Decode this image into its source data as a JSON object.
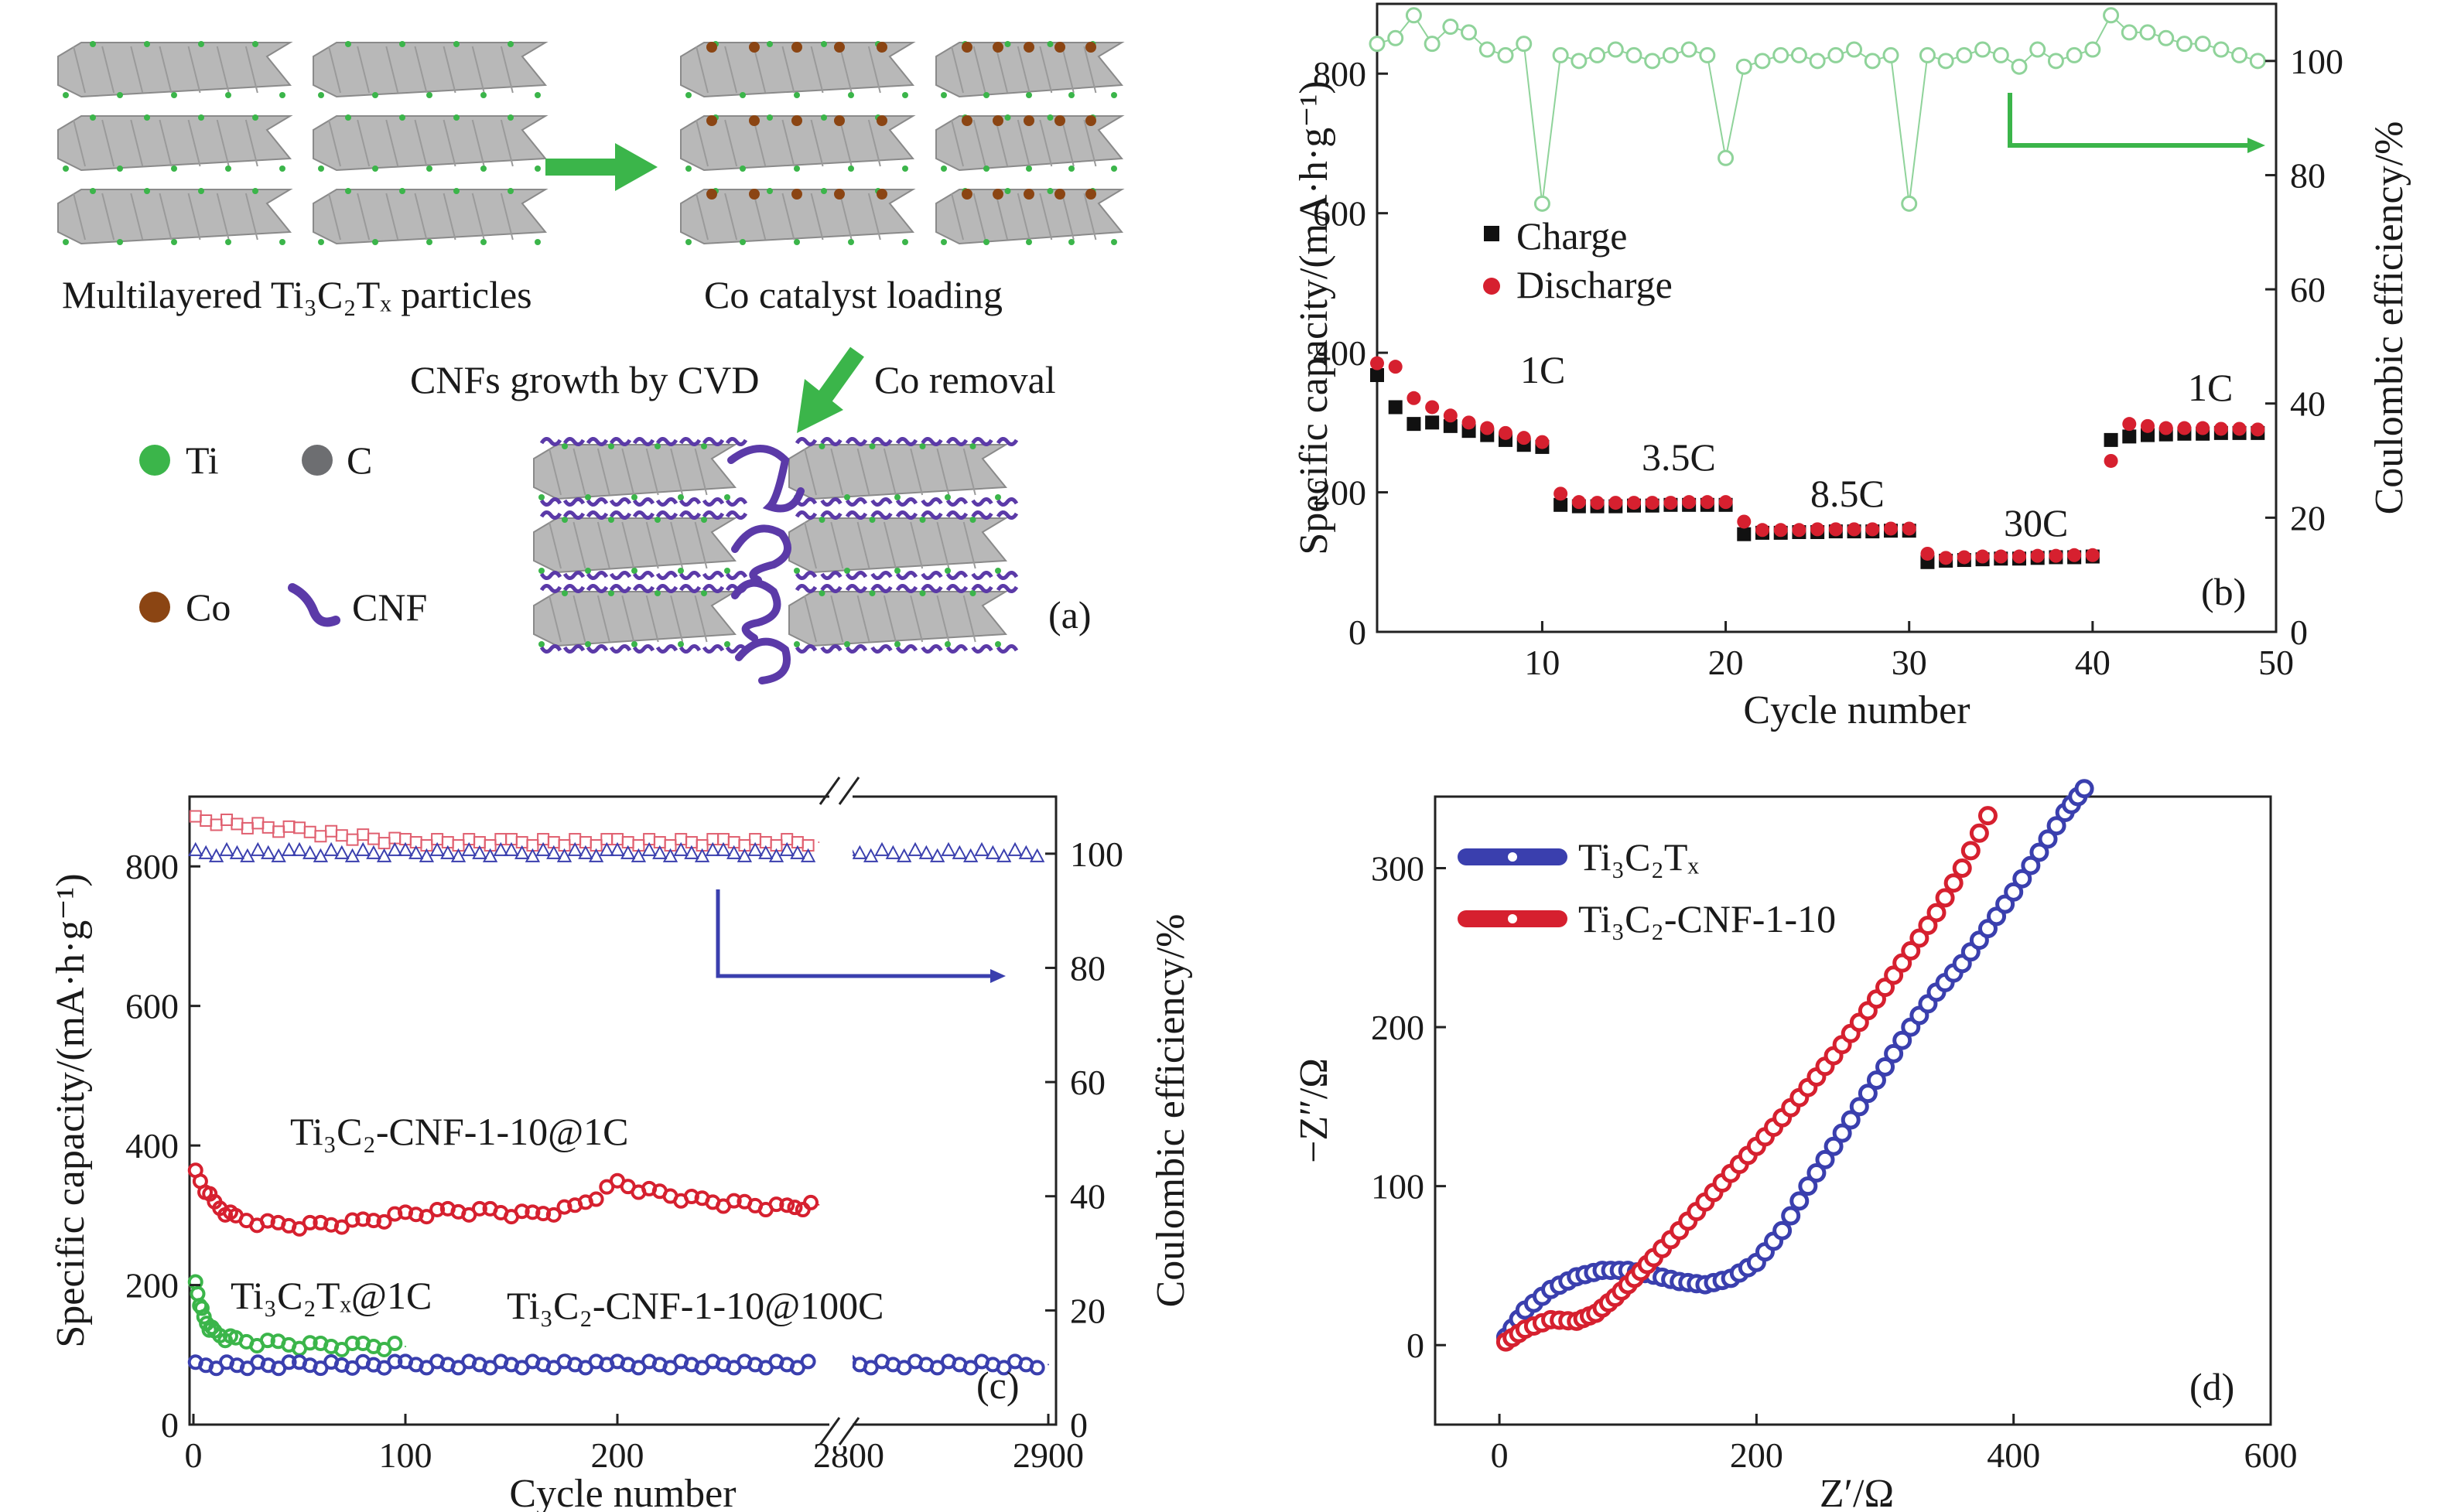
{
  "panel_a": {
    "caption_1": "Multilayered Ti₃C₂Tₓ particles",
    "caption_2": "Co catalyst loading",
    "step_1": "CNFs growth by CVD",
    "step_2": "Co removal",
    "legend": [
      "Ti",
      "C",
      "Co",
      "CNF"
    ],
    "colors": {
      "ti": "#3bb54a",
      "c": "#6d6e71",
      "co": "#8b4513",
      "cnf": "#5b3aa8",
      "arrow": "#3bb54a",
      "sheet": "#b8b8b8"
    },
    "label": "(a)"
  },
  "chart_data": [
    {
      "panel": "b",
      "type": "scatter",
      "label": "(b)",
      "xlabel": "Cycle number",
      "ylabel": "Specific capacity/(mA·h·g⁻¹)",
      "y2label": "Coulombic efficiency/%",
      "xlim": [
        1,
        50
      ],
      "ylim": [
        0,
        900
      ],
      "y2lim": [
        0,
        110
      ],
      "xticks": [
        10,
        20,
        30,
        40,
        50
      ],
      "yticks": [
        0,
        200,
        400,
        600,
        800
      ],
      "y2ticks": [
        0,
        20,
        40,
        60,
        80,
        100
      ],
      "legend": [
        "Charge",
        "Discharge"
      ],
      "annotations": [
        "1C",
        "3.5C",
        "8.5C",
        "30C",
        "1C"
      ],
      "series": [
        {
          "name": "Charge",
          "color": "#111111",
          "marker": "square",
          "x": [
            1,
            2,
            3,
            4,
            5,
            6,
            7,
            8,
            9,
            10,
            11,
            12,
            13,
            14,
            15,
            16,
            17,
            18,
            19,
            20,
            21,
            22,
            23,
            24,
            25,
            26,
            27,
            28,
            29,
            30,
            31,
            32,
            33,
            34,
            35,
            36,
            37,
            38,
            39,
            40,
            41,
            42,
            43,
            44,
            45,
            46,
            47,
            48,
            49
          ],
          "y": [
            368,
            322,
            298,
            300,
            295,
            288,
            282,
            275,
            268,
            265,
            182,
            180,
            180,
            180,
            181,
            181,
            182,
            182,
            182,
            182,
            140,
            142,
            142,
            143,
            143,
            144,
            144,
            144,
            145,
            145,
            100,
            102,
            103,
            104,
            105,
            105,
            106,
            107,
            107,
            108,
            275,
            280,
            282,
            283,
            284,
            284,
            285,
            285,
            285
          ]
        },
        {
          "name": "Discharge",
          "color": "#d6202f",
          "marker": "circle",
          "x": [
            1,
            2,
            3,
            4,
            5,
            6,
            7,
            8,
            9,
            10,
            11,
            12,
            13,
            14,
            15,
            16,
            17,
            18,
            19,
            20,
            21,
            22,
            23,
            24,
            25,
            26,
            27,
            28,
            29,
            30,
            31,
            32,
            33,
            34,
            35,
            36,
            37,
            38,
            39,
            40,
            41,
            42,
            43,
            44,
            45,
            46,
            47,
            48,
            49
          ],
          "y": [
            385,
            380,
            335,
            322,
            310,
            300,
            292,
            285,
            278,
            272,
            198,
            186,
            185,
            185,
            185,
            185,
            185,
            186,
            186,
            186,
            158,
            146,
            146,
            146,
            147,
            147,
            147,
            147,
            148,
            148,
            112,
            106,
            107,
            108,
            108,
            108,
            109,
            109,
            110,
            110,
            245,
            298,
            295,
            292,
            292,
            292,
            291,
            291,
            290
          ]
        },
        {
          "name": "",
          "color": "#8fd39a",
          "marker": "open-circle",
          "axis": "right",
          "x": [
            1,
            2,
            3,
            4,
            5,
            6,
            7,
            8,
            9,
            10,
            11,
            12,
            13,
            14,
            15,
            16,
            17,
            18,
            19,
            20,
            21,
            22,
            23,
            24,
            25,
            26,
            27,
            28,
            29,
            30,
            31,
            32,
            33,
            34,
            35,
            36,
            37,
            38,
            39,
            40,
            41,
            42,
            43,
            44,
            45,
            46,
            47,
            48,
            49
          ],
          "y": [
            103,
            104,
            108,
            103,
            106,
            105,
            102,
            101,
            103,
            75,
            101,
            100,
            101,
            102,
            101,
            100,
            101,
            102,
            101,
            83,
            99,
            100,
            101,
            101,
            100,
            101,
            102,
            100,
            101,
            75,
            101,
            100,
            101,
            102,
            101,
            99,
            102,
            100,
            101,
            102,
            108,
            105,
            105,
            104,
            103,
            103,
            102,
            101,
            100
          ]
        }
      ]
    },
    {
      "panel": "c",
      "type": "scatter",
      "label": "(c)",
      "xlabel": "Cycle number",
      "ylabel": "Specific capacity/(mA·h·g⁻¹)",
      "y2label": "Coulombic efficiency/%",
      "xticks": [
        0,
        100,
        200,
        2800,
        2900
      ],
      "yticks": [
        0,
        200,
        400,
        600,
        800
      ],
      "y2ticks": [
        0,
        20,
        40,
        60,
        80,
        100
      ],
      "ylim": [
        0,
        900
      ],
      "y2lim": [
        0,
        110
      ],
      "annotations": [
        "Ti₃C₂-CNF-1-10@1C",
        "Ti₃C₂Tₓ@1C",
        "Ti₃C₂-CNF-1-10@100C"
      ],
      "series": [
        {
          "name": "Ti₃C₂-CNF-1-10@1C",
          "color": "#d6202f",
          "x": [
            1,
            10,
            20,
            40,
            60,
            80,
            100,
            120,
            140,
            160,
            180,
            200,
            220,
            240,
            260,
            280,
            295
          ],
          "y": [
            360,
            315,
            295,
            285,
            285,
            290,
            300,
            305,
            305,
            300,
            310,
            345,
            330,
            320,
            315,
            310,
            315
          ]
        },
        {
          "name": "Ti₃C₂Tₓ@1C",
          "color": "#3bb54a",
          "x": [
            1,
            5,
            10,
            20,
            40,
            60,
            80,
            100
          ],
          "y": [
            200,
            150,
            130,
            120,
            115,
            112,
            112,
            112
          ]
        },
        {
          "name": "Ti₃C₂-CNF-1-10@100C",
          "color": "#3a3fae",
          "x": [
            1,
            50,
            100,
            200,
            295,
            2800,
            2900
          ],
          "y": [
            85,
            85,
            86,
            86,
            86,
            86,
            86
          ]
        },
        {
          "name": "",
          "color": "#e06070",
          "axis": "right",
          "x": [
            1,
            50,
            100,
            150,
            200,
            250,
            295
          ],
          "y": [
            106,
            104,
            102,
            102,
            102,
            102,
            102
          ]
        },
        {
          "name": "",
          "color": "#3a3fae",
          "axis": "right",
          "x": [
            1,
            50,
            100,
            150,
            200,
            250,
            295,
            2800,
            2900
          ],
          "y": [
            100,
            100,
            100,
            100,
            100,
            100,
            100,
            100,
            100
          ]
        }
      ]
    },
    {
      "panel": "d",
      "type": "scatter",
      "label": "(d)",
      "xlabel": "Z′/Ω",
      "ylabel": "−Z″/Ω",
      "xlim": [
        -50,
        600
      ],
      "ylim": [
        -50,
        345
      ],
      "xticks": [
        0,
        200,
        400,
        600
      ],
      "yticks": [
        0,
        100,
        200,
        300
      ],
      "legend": [
        "Ti₃C₂Tₓ",
        "Ti₃C₂-CNF-1-10"
      ],
      "series": [
        {
          "name": "Ti₃C₂Tₓ",
          "color": "#3a3fae",
          "x": [
            5,
            20,
            40,
            60,
            80,
            100,
            120,
            140,
            160,
            180,
            200,
            220,
            240,
            260,
            280,
            300,
            320,
            340,
            360,
            380,
            400,
            420,
            440,
            455
          ],
          "y": [
            5,
            22,
            35,
            43,
            47,
            47,
            44,
            40,
            38,
            42,
            52,
            72,
            100,
            125,
            150,
            175,
            200,
            222,
            240,
            262,
            285,
            310,
            335,
            350
          ]
        },
        {
          "name": "Ti₃C₂-CNF-1-10",
          "color": "#d6202f",
          "x": [
            5,
            20,
            40,
            60,
            75,
            90,
            105,
            120,
            140,
            160,
            180,
            200,
            220,
            240,
            260,
            280,
            300,
            320,
            340,
            360,
            380
          ],
          "y": [
            2,
            10,
            16,
            15,
            20,
            30,
            42,
            55,
            72,
            90,
            108,
            125,
            143,
            162,
            182,
            203,
            225,
            248,
            272,
            300,
            333
          ]
        }
      ]
    }
  ]
}
